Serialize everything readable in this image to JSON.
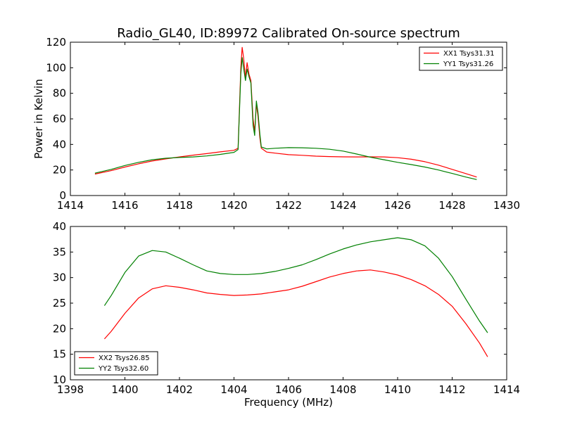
{
  "chart_data": [
    {
      "type": "line",
      "title": "Radio_GL40, ID:89972 Calibrated On-source spectrum",
      "xlabel": "",
      "ylabel": "Power in Kelvin",
      "xlim": [
        1414,
        1430
      ],
      "ylim": [
        0,
        120
      ],
      "xticks": [
        1414,
        1416,
        1418,
        1420,
        1422,
        1424,
        1426,
        1428,
        1430
      ],
      "yticks": [
        0,
        20,
        40,
        60,
        80,
        100,
        120
      ],
      "grid": false,
      "legend": "top-right",
      "series": [
        {
          "name": "XX1 Tsys31.31",
          "color": "#ff0000",
          "points": [
            [
              1414.9,
              16.8
            ],
            [
              1415.5,
              19.5
            ],
            [
              1416.0,
              22.3
            ],
            [
              1416.5,
              24.8
            ],
            [
              1417.0,
              27.0
            ],
            [
              1417.5,
              28.7
            ],
            [
              1418.0,
              30.2
            ],
            [
              1418.5,
              31.6
            ],
            [
              1419.0,
              32.8
            ],
            [
              1419.5,
              34.2
            ],
            [
              1420.0,
              35.4
            ],
            [
              1420.15,
              37.0
            ],
            [
              1420.25,
              100.0
            ],
            [
              1420.3,
              116.0
            ],
            [
              1420.35,
              108.0
            ],
            [
              1420.42,
              92.0
            ],
            [
              1420.48,
              104.0
            ],
            [
              1420.55,
              95.0
            ],
            [
              1420.62,
              90.0
            ],
            [
              1420.7,
              60.0
            ],
            [
              1420.76,
              50.0
            ],
            [
              1420.82,
              72.0
            ],
            [
              1420.88,
              62.0
            ],
            [
              1420.95,
              45.0
            ],
            [
              1421.0,
              37.0
            ],
            [
              1421.2,
              34.0
            ],
            [
              1421.5,
              33.2
            ],
            [
              1422.0,
              32.0
            ],
            [
              1422.5,
              31.5
            ],
            [
              1423.0,
              30.8
            ],
            [
              1423.5,
              30.5
            ],
            [
              1424.0,
              30.3
            ],
            [
              1424.5,
              30.2
            ],
            [
              1425.0,
              30.3
            ],
            [
              1425.5,
              30.2
            ],
            [
              1426.0,
              29.6
            ],
            [
              1426.5,
              28.4
            ],
            [
              1427.0,
              26.5
            ],
            [
              1427.5,
              23.8
            ],
            [
              1428.0,
              20.5
            ],
            [
              1428.5,
              17.2
            ],
            [
              1428.9,
              14.5
            ]
          ]
        },
        {
          "name": "YY1 Tsys31.26",
          "color": "#008000",
          "points": [
            [
              1414.9,
              17.5
            ],
            [
              1415.5,
              20.5
            ],
            [
              1416.0,
              23.5
            ],
            [
              1416.5,
              26.0
            ],
            [
              1417.0,
              28.0
            ],
            [
              1417.5,
              29.2
            ],
            [
              1418.0,
              29.8
            ],
            [
              1418.5,
              30.2
            ],
            [
              1419.0,
              31.0
            ],
            [
              1419.5,
              32.2
            ],
            [
              1420.0,
              33.8
            ],
            [
              1420.15,
              36.0
            ],
            [
              1420.25,
              95.0
            ],
            [
              1420.3,
              108.0
            ],
            [
              1420.35,
              100.0
            ],
            [
              1420.42,
              90.0
            ],
            [
              1420.48,
              99.0
            ],
            [
              1420.55,
              93.0
            ],
            [
              1420.62,
              88.0
            ],
            [
              1420.7,
              55.0
            ],
            [
              1420.76,
              47.0
            ],
            [
              1420.82,
              74.0
            ],
            [
              1420.88,
              65.0
            ],
            [
              1420.95,
              48.0
            ],
            [
              1421.0,
              38.0
            ],
            [
              1421.2,
              36.5
            ],
            [
              1421.5,
              37.0
            ],
            [
              1422.0,
              37.5
            ],
            [
              1422.5,
              37.4
            ],
            [
              1423.0,
              37.0
            ],
            [
              1423.5,
              36.2
            ],
            [
              1424.0,
              34.8
            ],
            [
              1424.5,
              32.5
            ],
            [
              1425.0,
              30.0
            ],
            [
              1425.5,
              28.0
            ],
            [
              1426.0,
              26.0
            ],
            [
              1426.5,
              24.2
            ],
            [
              1427.0,
              22.3
            ],
            [
              1427.5,
              20.0
            ],
            [
              1428.0,
              17.3
            ],
            [
              1428.5,
              14.5
            ],
            [
              1428.9,
              12.5
            ]
          ]
        }
      ]
    },
    {
      "type": "line",
      "title": "",
      "xlabel": "Frequency (MHz)",
      "ylabel": "",
      "xlim": [
        1398,
        1414
      ],
      "ylim": [
        10,
        40
      ],
      "xticks": [
        1398,
        1400,
        1402,
        1404,
        1406,
        1408,
        1410,
        1412,
        1414
      ],
      "yticks": [
        10,
        15,
        20,
        25,
        30,
        35,
        40
      ],
      "grid": false,
      "legend": "bottom-left",
      "series": [
        {
          "name": "XX2 Tsys26.85",
          "color": "#ff0000",
          "points": [
            [
              1399.25,
              18.0
            ],
            [
              1399.5,
              19.5
            ],
            [
              1400.0,
              23.0
            ],
            [
              1400.5,
              26.0
            ],
            [
              1401.0,
              27.8
            ],
            [
              1401.5,
              28.4
            ],
            [
              1402.0,
              28.1
            ],
            [
              1402.5,
              27.6
            ],
            [
              1403.0,
              27.0
            ],
            [
              1403.5,
              26.7
            ],
            [
              1404.0,
              26.5
            ],
            [
              1404.5,
              26.6
            ],
            [
              1405.0,
              26.8
            ],
            [
              1405.5,
              27.2
            ],
            [
              1406.0,
              27.6
            ],
            [
              1406.5,
              28.3
            ],
            [
              1407.0,
              29.2
            ],
            [
              1407.5,
              30.1
            ],
            [
              1408.0,
              30.8
            ],
            [
              1408.5,
              31.3
            ],
            [
              1409.0,
              31.5
            ],
            [
              1409.5,
              31.1
            ],
            [
              1410.0,
              30.5
            ],
            [
              1410.5,
              29.6
            ],
            [
              1411.0,
              28.4
            ],
            [
              1411.5,
              26.7
            ],
            [
              1412.0,
              24.4
            ],
            [
              1412.5,
              21.0
            ],
            [
              1413.0,
              17.2
            ],
            [
              1413.3,
              14.5
            ]
          ]
        },
        {
          "name": "YY2 Tsys32.60",
          "color": "#008000",
          "points": [
            [
              1399.25,
              24.5
            ],
            [
              1399.5,
              26.5
            ],
            [
              1400.0,
              31.0
            ],
            [
              1400.5,
              34.2
            ],
            [
              1401.0,
              35.3
            ],
            [
              1401.5,
              35.0
            ],
            [
              1402.0,
              33.8
            ],
            [
              1402.5,
              32.5
            ],
            [
              1403.0,
              31.3
            ],
            [
              1403.5,
              30.8
            ],
            [
              1404.0,
              30.6
            ],
            [
              1404.5,
              30.6
            ],
            [
              1405.0,
              30.8
            ],
            [
              1405.5,
              31.2
            ],
            [
              1406.0,
              31.8
            ],
            [
              1406.5,
              32.5
            ],
            [
              1407.0,
              33.5
            ],
            [
              1407.5,
              34.6
            ],
            [
              1408.0,
              35.6
            ],
            [
              1408.5,
              36.4
            ],
            [
              1409.0,
              37.0
            ],
            [
              1409.5,
              37.4
            ],
            [
              1410.0,
              37.8
            ],
            [
              1410.5,
              37.4
            ],
            [
              1411.0,
              36.2
            ],
            [
              1411.5,
              33.8
            ],
            [
              1412.0,
              30.2
            ],
            [
              1412.5,
              25.8
            ],
            [
              1413.0,
              21.5
            ],
            [
              1413.3,
              19.2
            ]
          ]
        }
      ]
    }
  ]
}
